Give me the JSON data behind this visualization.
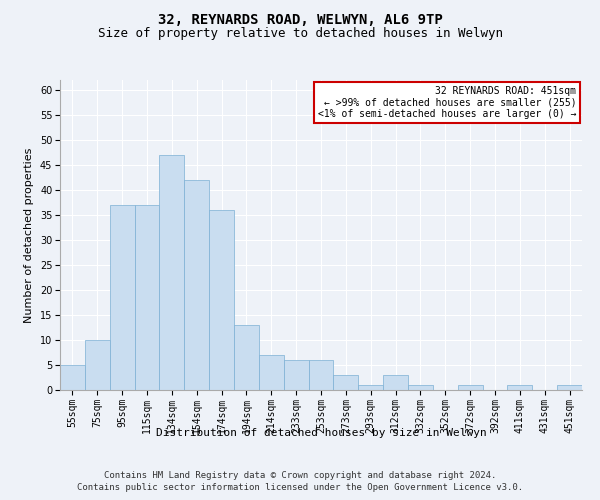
{
  "title": "32, REYNARDS ROAD, WELWYN, AL6 9TP",
  "subtitle": "Size of property relative to detached houses in Welwyn",
  "xlabel": "Distribution of detached houses by size in Welwyn",
  "ylabel": "Number of detached properties",
  "bar_color": "#c9ddf0",
  "bar_edge_color": "#7bafd4",
  "categories": [
    "55sqm",
    "75sqm",
    "95sqm",
    "115sqm",
    "134sqm",
    "154sqm",
    "174sqm",
    "194sqm",
    "214sqm",
    "233sqm",
    "253sqm",
    "273sqm",
    "293sqm",
    "312sqm",
    "332sqm",
    "352sqm",
    "372sqm",
    "392sqm",
    "411sqm",
    "431sqm",
    "451sqm"
  ],
  "values": [
    5,
    10,
    37,
    37,
    47,
    42,
    36,
    13,
    7,
    6,
    6,
    3,
    1,
    3,
    1,
    0,
    1,
    0,
    1,
    0,
    1
  ],
  "ylim": [
    0,
    62
  ],
  "yticks": [
    0,
    5,
    10,
    15,
    20,
    25,
    30,
    35,
    40,
    45,
    50,
    55,
    60
  ],
  "annotation_box_text": "32 REYNARDS ROAD: 451sqm\n← >99% of detached houses are smaller (255)\n<1% of semi-detached houses are larger (0) →",
  "annotation_box_color": "#ffffff",
  "annotation_box_edge_color": "#cc0000",
  "footer_line1": "Contains HM Land Registry data © Crown copyright and database right 2024.",
  "footer_line2": "Contains public sector information licensed under the Open Government Licence v3.0.",
  "background_color": "#eef2f8",
  "grid_color": "#ffffff",
  "title_fontsize": 10,
  "subtitle_fontsize": 9,
  "axis_label_fontsize": 8,
  "tick_fontsize": 7,
  "annotation_fontsize": 7,
  "footer_fontsize": 6.5
}
